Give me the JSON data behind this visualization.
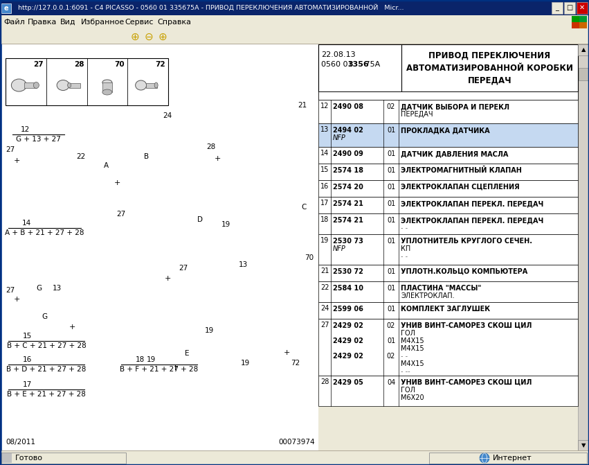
{
  "title_bar": "  http://127.0.0.1:6091 - C4 PICASSO - 0560 01 335675A - ПРИВОД ПЕРЕКЛЮЧЕНИЯ АВТОМАТИЗИРОВАННОЙ   Micr...",
  "menu_items": [
    "Файл",
    "Правка",
    "Вид",
    "Избранное",
    "Сервис",
    "Справка"
  ],
  "status_bar": "Готово",
  "status_right": "Интернет",
  "header_left_line1": "22.08.13",
  "header_left_line2_normal": "0560 01 ",
  "header_left_line2_bold": "3356",
  "header_left_line2_end": " 75A",
  "header_right_line1": "ПРИВОД ПЕРЕКЛЮЧЕНИЯ",
  "header_right_line2": "АВТОМАТИЗИРОВАННОЙ КОРОБКИ",
  "header_right_line3": "ПЕРЕДАЧ",
  "date": "08/2011",
  "doc_num": "00073974",
  "colors": {
    "titlebar_bg": "#0a246a",
    "titlebar_text": "#ffffff",
    "menubar_bg": "#ece9d8",
    "content_bg": "#ffffff",
    "table_highlight": "#c5d9f1",
    "table_border": "#000000",
    "statusbar_bg": "#ece9d8",
    "toolbar_bg": "#ece9d8",
    "btn_minimize": "#ece9d8",
    "btn_maximize": "#ece9d8",
    "btn_close": "#cc0000",
    "scrollbar_bg": "#d4d0c8"
  },
  "row_configs": [
    {
      "num": "12",
      "codes": [
        "2490 08"
      ],
      "qtys": [
        "02"
      ],
      "descs": [
        "ДАТЧИК ВЫБОРА И ПЕРЕКЛ",
        "ПЕРЕДАЧ"
      ],
      "highlight": false,
      "rh": 34
    },
    {
      "num": "13",
      "codes": [
        "2494 02",
        "NFP"
      ],
      "qtys": [
        "01",
        ""
      ],
      "descs": [
        "ПРОКЛАДКА ДАТЧИКА",
        ""
      ],
      "highlight": true,
      "rh": 34
    },
    {
      "num": "14",
      "codes": [
        "2490 09"
      ],
      "qtys": [
        "01"
      ],
      "descs": [
        "ДАТЧИК ДАВЛЕНИЯ МАСЛА"
      ],
      "highlight": false,
      "rh": 24
    },
    {
      "num": "15",
      "codes": [
        "2574 18"
      ],
      "qtys": [
        "01"
      ],
      "descs": [
        "ЭЛЕКТРОМАГНИТНЫЙ КЛАПАН"
      ],
      "highlight": false,
      "rh": 24
    },
    {
      "num": "16",
      "codes": [
        "2574 20"
      ],
      "qtys": [
        "01"
      ],
      "descs": [
        "ЭЛЕКТРОКЛАПАН СЦЕПЛЕНИЯ"
      ],
      "highlight": false,
      "rh": 24
    },
    {
      "num": "17",
      "codes": [
        "2574 21"
      ],
      "qtys": [
        "01"
      ],
      "descs": [
        "ЭЛЕКТРОКЛАПАН ПЕРЕКЛ. ПЕРЕДАЧ"
      ],
      "highlight": false,
      "rh": 24
    },
    {
      "num": "18",
      "codes": [
        "2574 21"
      ],
      "qtys": [
        "01"
      ],
      "descs": [
        "ЭЛЕКТРОКЛАПАН ПЕРЕКЛ. ПЕРЕДАЧ",
        "- -"
      ],
      "highlight": false,
      "rh": 30
    },
    {
      "num": "19",
      "codes": [
        "2530 73",
        "NFP"
      ],
      "qtys": [
        "01",
        ""
      ],
      "descs": [
        "УПЛОТНИТЕЛЬ КРУГЛОГО СЕЧЕН.",
        "КП",
        "- -"
      ],
      "highlight": false,
      "rh": 44
    },
    {
      "num": "21",
      "codes": [
        "2530 72"
      ],
      "qtys": [
        "01"
      ],
      "descs": [
        "УПЛОТН.КОЛЬЦО КОМПЬЮТЕРА"
      ],
      "highlight": false,
      "rh": 24
    },
    {
      "num": "22",
      "codes": [
        "2584 10"
      ],
      "qtys": [
        "01"
      ],
      "descs": [
        "ПЛАСТИНА \"МАССЫ\"",
        "ЭЛЕКТРОКЛАП."
      ],
      "highlight": false,
      "rh": 30
    },
    {
      "num": "24",
      "codes": [
        "2599 06"
      ],
      "qtys": [
        "01"
      ],
      "descs": [
        "КОМПЛЕКТ ЗАГЛУШЕК"
      ],
      "highlight": false,
      "rh": 24
    },
    {
      "num": "27",
      "codes": [
        "2429 02",
        "",
        "2429 02",
        "",
        "2429 02"
      ],
      "qtys": [
        "02",
        "",
        "01",
        "",
        "02"
      ],
      "descs": [
        "УНИВ ВИНТ-САМОРЕЗ СКОШ ЦИЛ",
        "ГОЛ",
        "M4X15",
        "M4X15",
        "- -",
        "M4X15",
        "- --"
      ],
      "highlight": false,
      "rh": 82
    },
    {
      "num": "28",
      "codes": [
        "2429 05"
      ],
      "qtys": [
        "04"
      ],
      "descs": [
        "УНИВ ВИНТ-САМОРЕЗ СКОШ ЦИЛ",
        "ГОЛ",
        "M6X20"
      ],
      "highlight": false,
      "rh": 44
    }
  ]
}
